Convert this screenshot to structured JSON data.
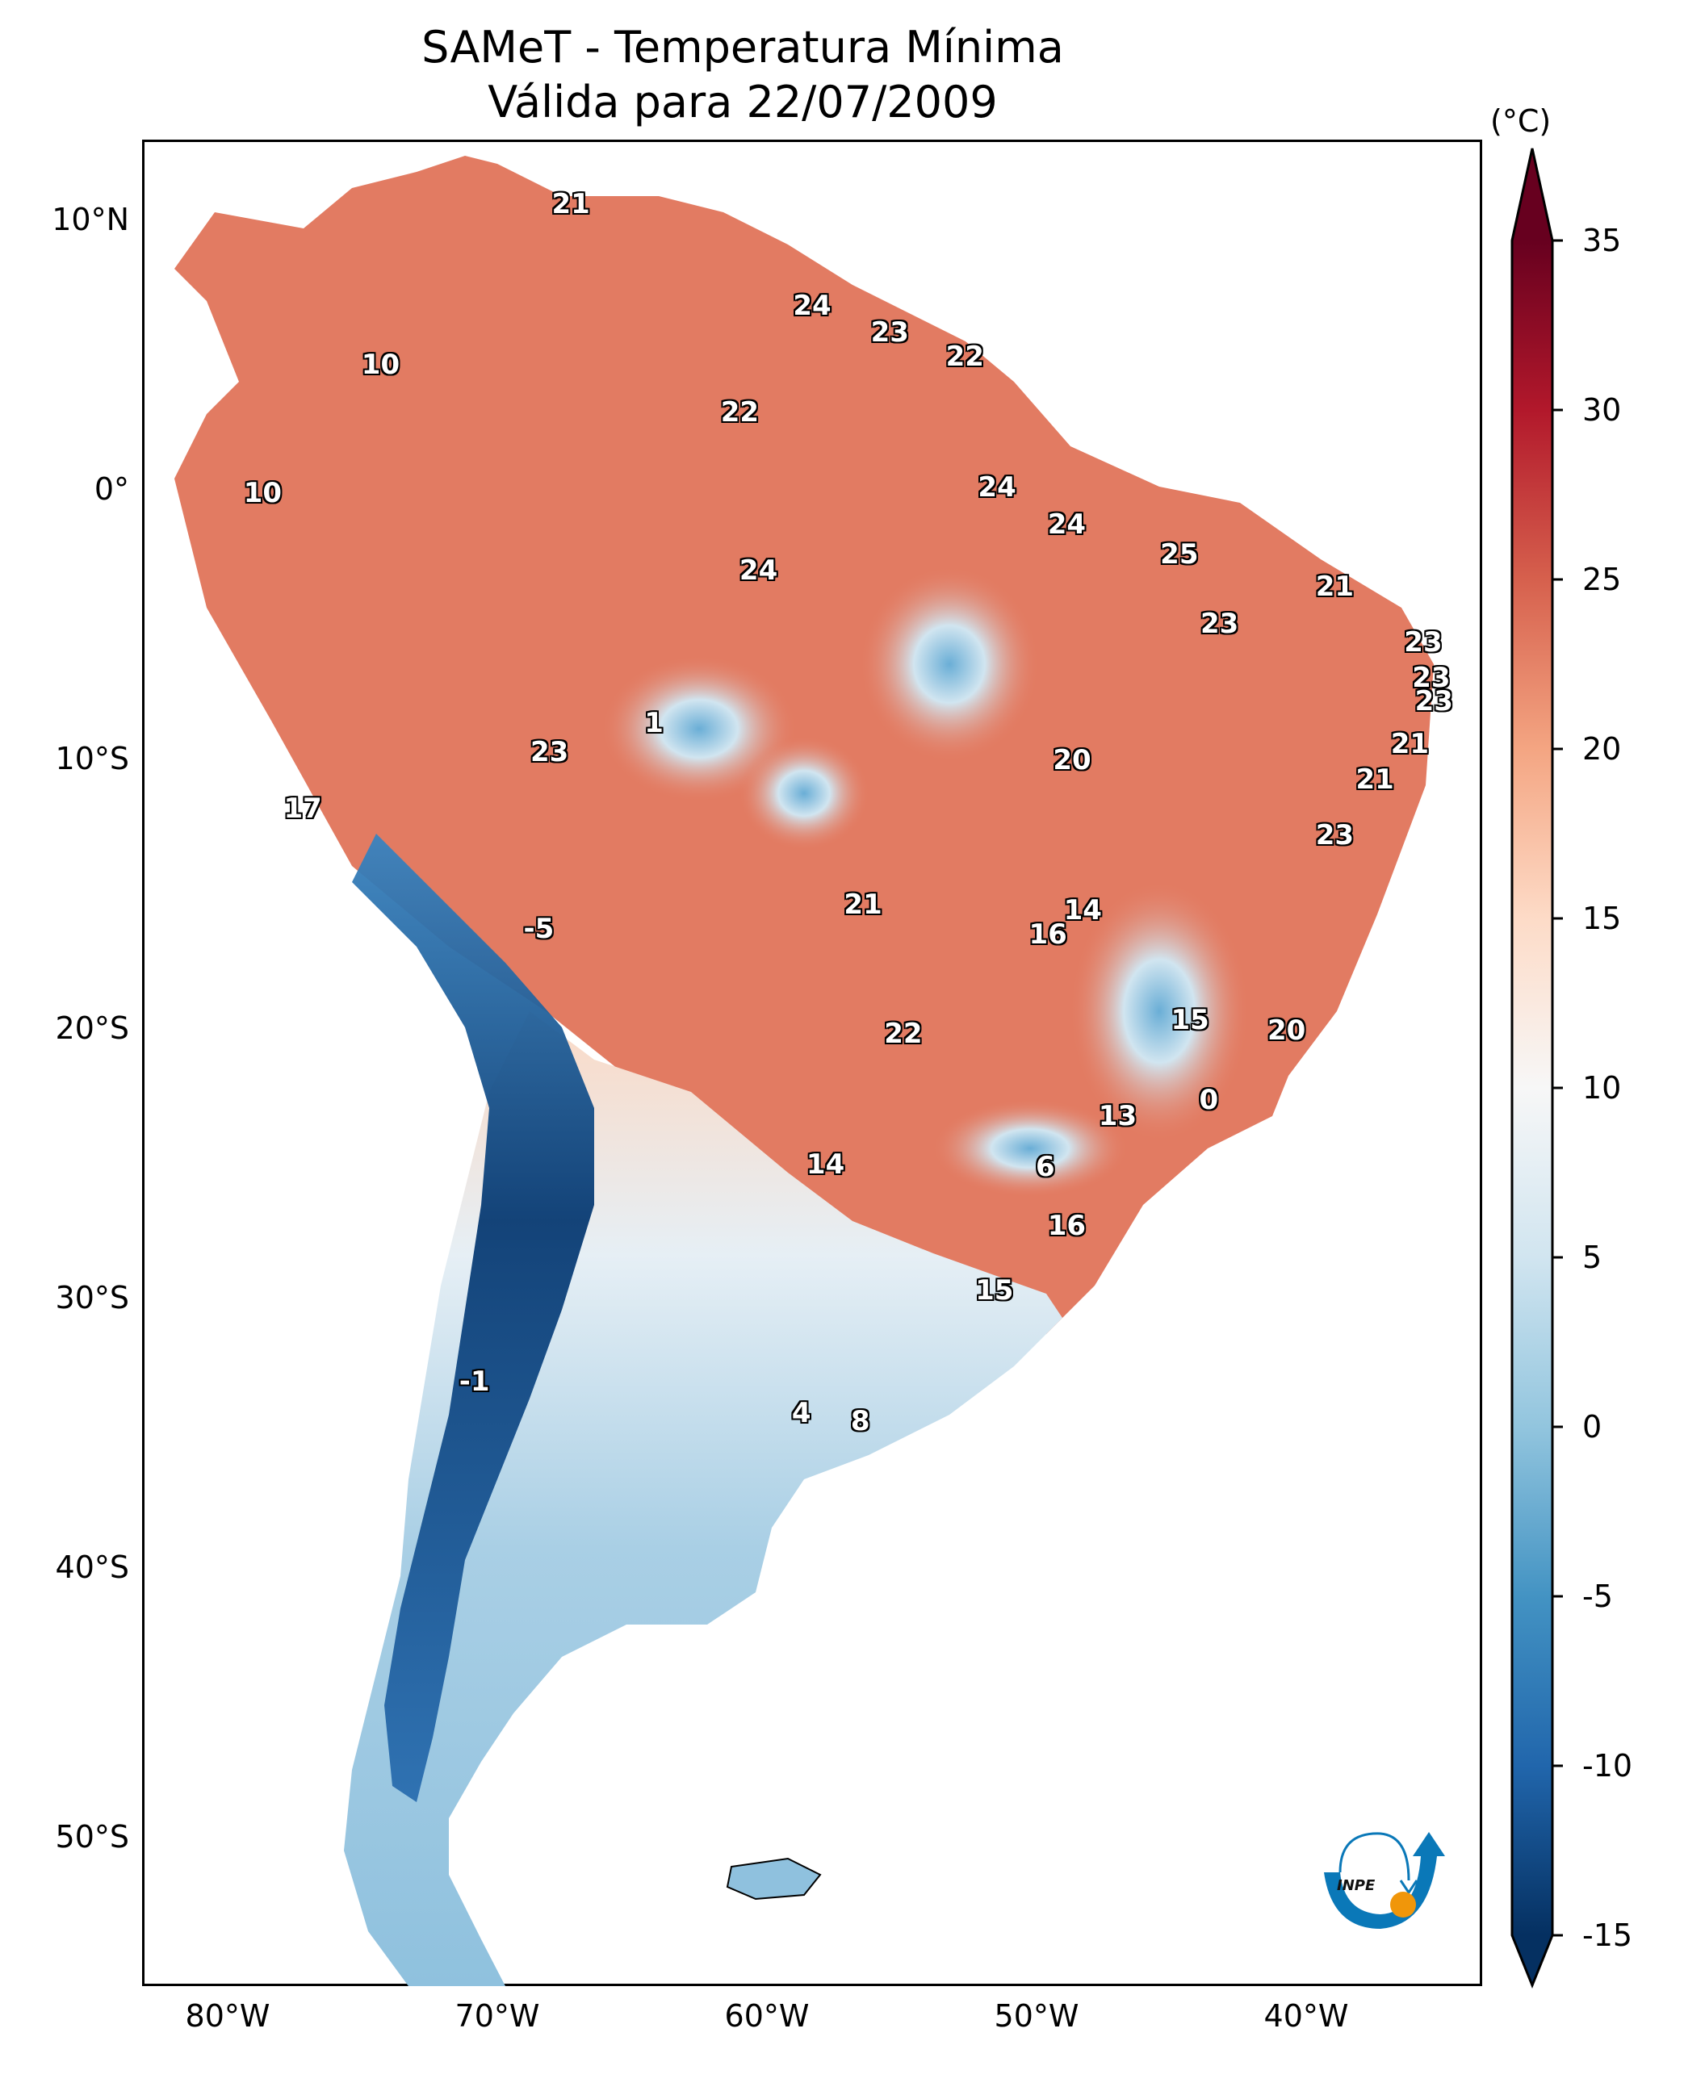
{
  "chart_data": {
    "type": "heatmap",
    "title": "SAMeT - Temperatura Mínima",
    "subtitle": "Válida para 22/07/2009",
    "xlabel": "",
    "ylabel": "",
    "x_ticks": [
      "80°W",
      "70°W",
      "60°W",
      "50°W",
      "40°W"
    ],
    "x_tick_values": [
      -80,
      -70,
      -60,
      -50,
      -40
    ],
    "y_ticks": [
      "10°N",
      "0°",
      "10°S",
      "20°S",
      "30°S",
      "40°S",
      "50°S"
    ],
    "y_tick_values": [
      10,
      0,
      -10,
      -20,
      -30,
      -40,
      -50
    ],
    "xlim": [
      -83,
      -33
    ],
    "ylim": [
      -56,
      13
    ],
    "colorbar": {
      "label": "(°C)",
      "ticks": [
        "35",
        "30",
        "25",
        "20",
        "15",
        "10",
        "5",
        "0",
        "-5",
        "-10",
        "-15"
      ],
      "tick_values": [
        35,
        30,
        25,
        20,
        15,
        10,
        5,
        0,
        -5,
        -10,
        -15
      ],
      "range": [
        -15,
        35
      ],
      "extend": "both",
      "colormap": "RdBu_r",
      "stops": [
        "#053061",
        "#2166ac",
        "#4393c3",
        "#92c5de",
        "#d1e5f0",
        "#f7f7f7",
        "#fddbc7",
        "#f4a582",
        "#d6604d",
        "#b2182b",
        "#67001f"
      ]
    },
    "station_labels": [
      {
        "value": "21",
        "lon": -67.0,
        "lat": 10.6
      },
      {
        "value": "24",
        "lon": -58.0,
        "lat": 6.8
      },
      {
        "value": "23",
        "lon": -55.1,
        "lat": 5.8
      },
      {
        "value": "22",
        "lon": -52.3,
        "lat": 4.9
      },
      {
        "value": "10",
        "lon": -74.1,
        "lat": 4.6
      },
      {
        "value": "22",
        "lon": -60.7,
        "lat": 2.8
      },
      {
        "value": "10",
        "lon": -78.5,
        "lat": -0.2
      },
      {
        "value": "24",
        "lon": -51.1,
        "lat": 0.0
      },
      {
        "value": "24",
        "lon": -48.5,
        "lat": -1.4
      },
      {
        "value": "25",
        "lon": -44.3,
        "lat": -2.5
      },
      {
        "value": "24",
        "lon": -60.0,
        "lat": -3.1
      },
      {
        "value": "21",
        "lon": -38.5,
        "lat": -3.7
      },
      {
        "value": "23",
        "lon": -42.8,
        "lat": -5.1
      },
      {
        "value": "23",
        "lon": -35.2,
        "lat": -5.8
      },
      {
        "value": "23",
        "lon": -34.9,
        "lat": -7.1
      },
      {
        "value": "23",
        "lon": -34.8,
        "lat": -8.0
      },
      {
        "value": "1",
        "lon": -63.9,
        "lat": -8.8
      },
      {
        "value": "21",
        "lon": -35.7,
        "lat": -9.6
      },
      {
        "value": "23",
        "lon": -67.8,
        "lat": -9.9
      },
      {
        "value": "20",
        "lon": -48.3,
        "lat": -10.2
      },
      {
        "value": "21",
        "lon": -37.0,
        "lat": -10.9
      },
      {
        "value": "17",
        "lon": -77.0,
        "lat": -12.0
      },
      {
        "value": "23",
        "lon": -38.5,
        "lat": -13.0
      },
      {
        "value": "21",
        "lon": -56.1,
        "lat": -15.6
      },
      {
        "value": "14",
        "lon": -47.9,
        "lat": -15.8
      },
      {
        "value": "16",
        "lon": -49.2,
        "lat": -16.7
      },
      {
        "value": "-5",
        "lon": -68.2,
        "lat": -16.5
      },
      {
        "value": "15",
        "lon": -43.9,
        "lat": -19.9
      },
      {
        "value": "20",
        "lon": -40.3,
        "lat": -20.3
      },
      {
        "value": "22",
        "lon": -54.6,
        "lat": -20.4
      },
      {
        "value": "0",
        "lon": -43.2,
        "lat": -22.9
      },
      {
        "value": "13",
        "lon": -46.6,
        "lat": -23.5
      },
      {
        "value": "14",
        "lon": -57.5,
        "lat": -25.3
      },
      {
        "value": "6",
        "lon": -49.3,
        "lat": -25.4
      },
      {
        "value": "16",
        "lon": -48.5,
        "lat": -27.6
      },
      {
        "value": "15",
        "lon": -51.2,
        "lat": -30.0
      },
      {
        "value": "-1",
        "lon": -70.6,
        "lat": -33.4
      },
      {
        "value": "4",
        "lon": -58.4,
        "lat": -34.6
      },
      {
        "value": "8",
        "lon": -56.2,
        "lat": -34.9
      }
    ]
  },
  "logo": {
    "text": "INPE",
    "arc_color": "#0a78b8",
    "sun_color": "#f0960a"
  }
}
